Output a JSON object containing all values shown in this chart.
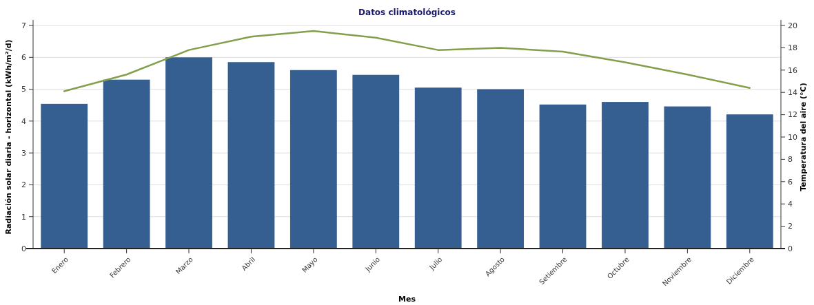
{
  "chart_data": {
    "type": "bar",
    "title": "Datos climatológicos",
    "xlabel": "Mes",
    "ylabel": "Radiación solar diaria - horizontal (kWh/m²/d)",
    "y2label": "Temperatura del aire (°C)",
    "categories": [
      "Enero",
      "Febrero",
      "Marzo",
      "Abril",
      "Mayo",
      "Junio",
      "Julio",
      "Agosto",
      "Setiembre",
      "Octubre",
      "Noviembre",
      "Diciembre"
    ],
    "series": [
      {
        "color": "#365f91",
        "values": [
          4.54,
          5.3,
          6.0,
          5.85,
          5.6,
          5.45,
          5.05,
          5.0,
          4.52,
          4.6,
          4.46,
          4.21
        ]
      },
      {
        "type": "line",
        "axis": "y2",
        "color": "#82a04c",
        "values": [
          14.1,
          15.6,
          17.8,
          19.0,
          19.5,
          18.9,
          17.8,
          18.0,
          17.65,
          16.7,
          15.6,
          14.4
        ]
      }
    ],
    "ylim": [
      0,
      7
    ],
    "yticks": [
      0,
      1,
      2,
      3,
      4,
      5,
      6,
      7
    ],
    "y2lim": [
      0,
      20
    ],
    "y2ticks": [
      0,
      2,
      4,
      6,
      8,
      10,
      12,
      14,
      16,
      18,
      20
    ],
    "grid": "y",
    "marker": "none",
    "line_style": "solid"
  }
}
